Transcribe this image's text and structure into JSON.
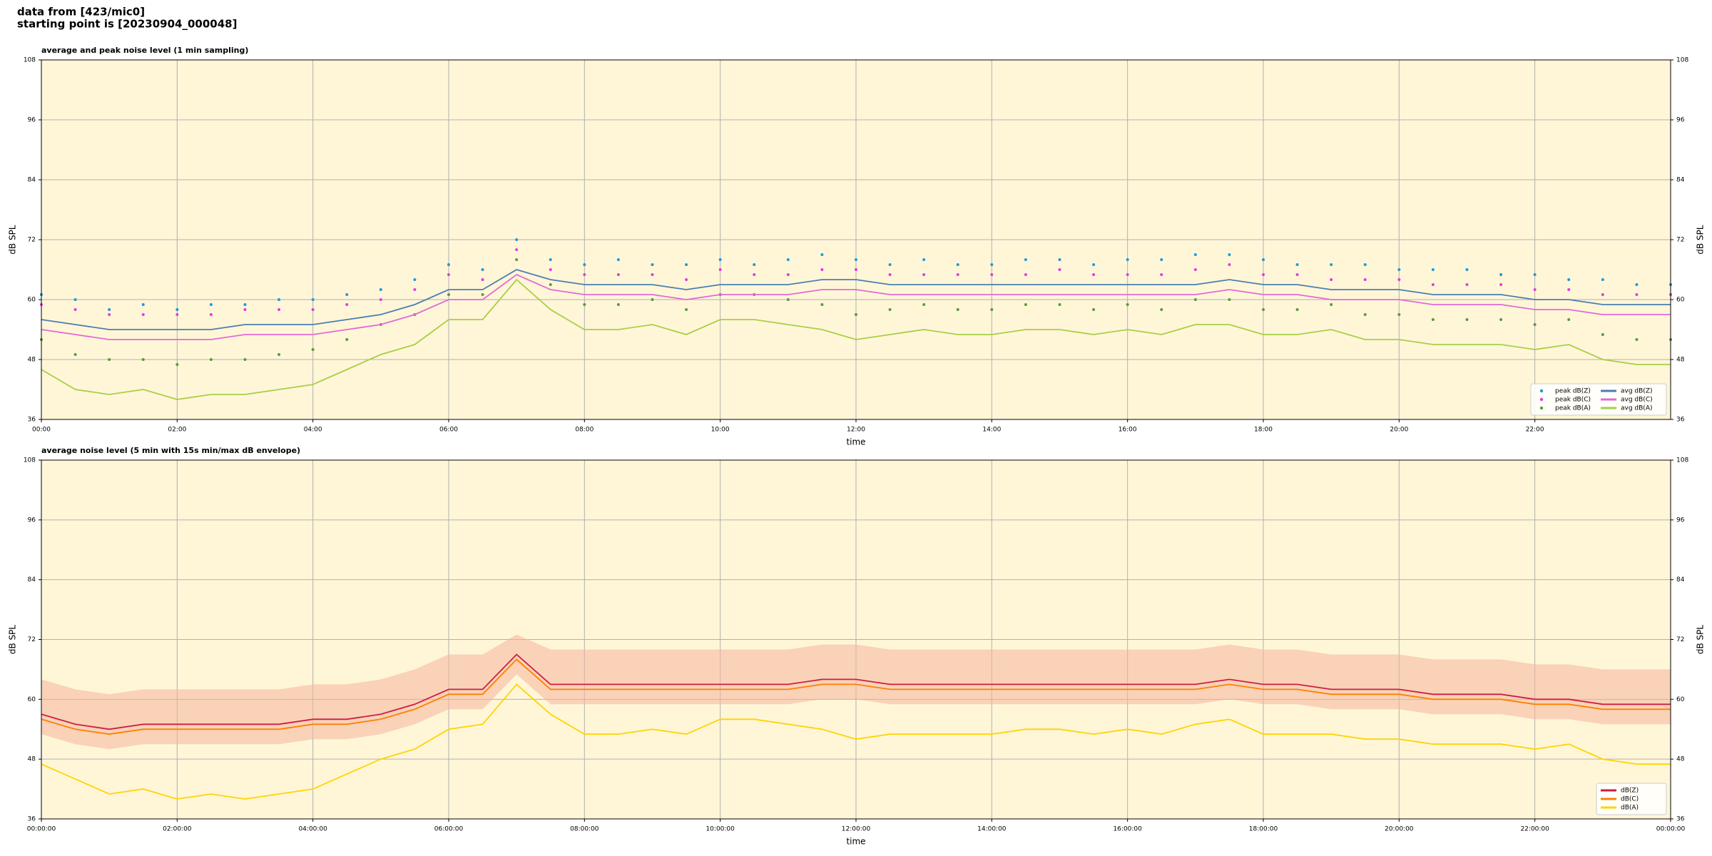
{
  "header": {
    "lines": [
      "data from [423/mic0]",
      "starting point is [20230904_000048]"
    ]
  },
  "chart_data": [
    {
      "type": "line",
      "title": "average and peak noise level (1 min sampling)",
      "xlabel": "time",
      "ylabel": "dB SPL",
      "x": [
        0,
        0.5,
        1,
        1.5,
        2,
        2.5,
        3,
        3.5,
        4,
        4.5,
        5,
        5.5,
        6,
        6.5,
        7,
        7.5,
        8,
        8.5,
        9,
        9.5,
        10,
        10.5,
        11,
        11.5,
        12,
        12.5,
        13,
        13.5,
        14,
        14.5,
        15,
        15.5,
        16,
        16.5,
        17,
        17.5,
        18,
        18.5,
        19,
        19.5,
        20,
        20.5,
        21,
        21.5,
        22,
        22.5,
        23,
        23.5,
        24
      ],
      "xlim": [
        0,
        24
      ],
      "xticks": [
        {
          "value": 0,
          "label": "00:00"
        },
        {
          "value": 2,
          "label": "02:00"
        },
        {
          "value": 4,
          "label": "04:00"
        },
        {
          "value": 6,
          "label": "06:00"
        },
        {
          "value": 8,
          "label": "08:00"
        },
        {
          "value": 10,
          "label": "10:00"
        },
        {
          "value": 12,
          "label": "12:00"
        },
        {
          "value": 14,
          "label": "14:00"
        },
        {
          "value": 16,
          "label": "16:00"
        },
        {
          "value": 18,
          "label": "18:00"
        },
        {
          "value": 20,
          "label": "20:00"
        },
        {
          "value": 22,
          "label": "22:00"
        }
      ],
      "ylim": [
        36,
        108
      ],
      "yticks": [
        36,
        48,
        60,
        72,
        84,
        96,
        108
      ],
      "grid": true,
      "legend": "lower right",
      "legend_columns": 2,
      "series": [
        {
          "name": "peak dB(Z)",
          "kind": "scatter",
          "color": "#1f9bd6",
          "values": [
            61,
            60,
            58,
            59,
            58,
            59,
            59,
            60,
            60,
            61,
            62,
            64,
            67,
            66,
            72,
            68,
            67,
            68,
            67,
            67,
            68,
            67,
            68,
            69,
            68,
            67,
            68,
            67,
            67,
            68,
            68,
            67,
            68,
            68,
            69,
            69,
            68,
            67,
            67,
            67,
            66,
            66,
            66,
            65,
            65,
            64,
            64,
            63,
            63
          ]
        },
        {
          "name": "peak dB(C)",
          "kind": "scatter",
          "color": "#e03fd8",
          "values": [
            59,
            58,
            57,
            57,
            57,
            57,
            58,
            58,
            58,
            59,
            60,
            62,
            65,
            64,
            70,
            66,
            65,
            65,
            65,
            64,
            66,
            65,
            65,
            66,
            66,
            65,
            65,
            65,
            65,
            65,
            66,
            65,
            65,
            65,
            66,
            67,
            65,
            65,
            64,
            64,
            64,
            63,
            63,
            63,
            62,
            62,
            61,
            61,
            61
          ]
        },
        {
          "name": "peak dB(A)",
          "kind": "scatter",
          "color": "#5c9a3c",
          "values": [
            52,
            49,
            48,
            48,
            47,
            48,
            48,
            49,
            50,
            52,
            55,
            57,
            61,
            61,
            68,
            63,
            59,
            59,
            60,
            58,
            61,
            61,
            60,
            59,
            57,
            58,
            59,
            58,
            58,
            59,
            59,
            58,
            59,
            58,
            60,
            60,
            58,
            58,
            59,
            57,
            57,
            56,
            56,
            56,
            55,
            56,
            53,
            52,
            52
          ]
        },
        {
          "name": "avg dB(Z)",
          "kind": "line",
          "color": "#4a7fb0",
          "values": [
            56,
            55,
            54,
            54,
            54,
            54,
            55,
            55,
            55,
            56,
            57,
            59,
            62,
            62,
            66,
            64,
            63,
            63,
            63,
            62,
            63,
            63,
            63,
            64,
            64,
            63,
            63,
            63,
            63,
            63,
            63,
            63,
            63,
            63,
            63,
            64,
            63,
            63,
            62,
            62,
            62,
            61,
            61,
            61,
            60,
            60,
            59,
            59,
            59
          ]
        },
        {
          "name": "avg dB(C)",
          "kind": "line",
          "color": "#e26ad4",
          "values": [
            54,
            53,
            52,
            52,
            52,
            52,
            53,
            53,
            53,
            54,
            55,
            57,
            60,
            60,
            65,
            62,
            61,
            61,
            61,
            60,
            61,
            61,
            61,
            62,
            62,
            61,
            61,
            61,
            61,
            61,
            61,
            61,
            61,
            61,
            61,
            62,
            61,
            61,
            60,
            60,
            60,
            59,
            59,
            59,
            58,
            58,
            57,
            57,
            57
          ]
        },
        {
          "name": "avg dB(A)",
          "kind": "line",
          "color": "#a8cf45",
          "values": [
            46,
            42,
            41,
            42,
            40,
            41,
            41,
            42,
            43,
            46,
            49,
            51,
            56,
            56,
            64,
            58,
            54,
            54,
            55,
            53,
            56,
            56,
            55,
            54,
            52,
            53,
            54,
            53,
            53,
            54,
            54,
            53,
            54,
            53,
            55,
            55,
            53,
            53,
            54,
            52,
            52,
            51,
            51,
            51,
            50,
            51,
            48,
            47,
            47
          ]
        }
      ]
    },
    {
      "type": "line",
      "title": "average noise level (5 min with 15s min/max dB envelope)",
      "xlabel": "time",
      "ylabel": "dB SPL",
      "x": [
        0,
        0.5,
        1,
        1.5,
        2,
        2.5,
        3,
        3.5,
        4,
        4.5,
        5,
        5.5,
        6,
        6.5,
        7,
        7.5,
        8,
        8.5,
        9,
        9.5,
        10,
        10.5,
        11,
        11.5,
        12,
        12.5,
        13,
        13.5,
        14,
        14.5,
        15,
        15.5,
        16,
        16.5,
        17,
        17.5,
        18,
        18.5,
        19,
        19.5,
        20,
        20.5,
        21,
        21.5,
        22,
        22.5,
        23,
        23.5,
        24
      ],
      "xlim": [
        0,
        24
      ],
      "xticks": [
        {
          "value": 0,
          "label": "00:00:00"
        },
        {
          "value": 2,
          "label": "02:00:00"
        },
        {
          "value": 4,
          "label": "04:00:00"
        },
        {
          "value": 6,
          "label": "06:00:00"
        },
        {
          "value": 8,
          "label": "08:00:00"
        },
        {
          "value": 10,
          "label": "10:00:00"
        },
        {
          "value": 12,
          "label": "12:00:00"
        },
        {
          "value": 14,
          "label": "14:00:00"
        },
        {
          "value": 16,
          "label": "16:00:00"
        },
        {
          "value": 18,
          "label": "18:00:00"
        },
        {
          "value": 20,
          "label": "20:00:00"
        },
        {
          "value": 22,
          "label": "22:00:00"
        },
        {
          "value": 24,
          "label": "00:00:00"
        }
      ],
      "ylim": [
        36,
        108
      ],
      "yticks": [
        36,
        48,
        60,
        72,
        84,
        96,
        108
      ],
      "grid": true,
      "legend": "lower right",
      "legend_columns": 1,
      "envelope": {
        "color": "#f4b49c",
        "low": [
          53,
          51,
          50,
          51,
          51,
          51,
          51,
          51,
          52,
          52,
          53,
          55,
          58,
          58,
          65,
          59,
          59,
          59,
          59,
          59,
          59,
          59,
          59,
          60,
          60,
          59,
          59,
          59,
          59,
          59,
          59,
          59,
          59,
          59,
          59,
          60,
          59,
          59,
          58,
          58,
          58,
          57,
          57,
          57,
          56,
          56,
          55,
          55,
          55
        ],
        "high": [
          64,
          62,
          61,
          62,
          62,
          62,
          62,
          62,
          63,
          63,
          64,
          66,
          69,
          69,
          73,
          70,
          70,
          70,
          70,
          70,
          70,
          70,
          70,
          71,
          71,
          70,
          70,
          70,
          70,
          70,
          70,
          70,
          70,
          70,
          70,
          71,
          70,
          70,
          69,
          69,
          69,
          68,
          68,
          68,
          67,
          67,
          66,
          66,
          66
        ]
      },
      "series": [
        {
          "name": "dB(Z)",
          "kind": "line",
          "color": "#cc1f44",
          "values": [
            57,
            55,
            54,
            55,
            55,
            55,
            55,
            55,
            56,
            56,
            57,
            59,
            62,
            62,
            69,
            63,
            63,
            63,
            63,
            63,
            63,
            63,
            63,
            64,
            64,
            63,
            63,
            63,
            63,
            63,
            63,
            63,
            63,
            63,
            63,
            64,
            63,
            63,
            62,
            62,
            62,
            61,
            61,
            61,
            60,
            60,
            59,
            59,
            59
          ]
        },
        {
          "name": "dB(C)",
          "kind": "line",
          "color": "#ff8000",
          "values": [
            56,
            54,
            53,
            54,
            54,
            54,
            54,
            54,
            55,
            55,
            56,
            58,
            61,
            61,
            68,
            62,
            62,
            62,
            62,
            62,
            62,
            62,
            62,
            63,
            63,
            62,
            62,
            62,
            62,
            62,
            62,
            62,
            62,
            62,
            62,
            63,
            62,
            62,
            61,
            61,
            61,
            60,
            60,
            60,
            59,
            59,
            58,
            58,
            58
          ]
        },
        {
          "name": "dB(A)",
          "kind": "line",
          "color": "#ffd400",
          "values": [
            47,
            44,
            41,
            42,
            40,
            41,
            40,
            41,
            42,
            45,
            48,
            50,
            54,
            55,
            63,
            57,
            53,
            53,
            54,
            53,
            56,
            56,
            55,
            54,
            52,
            53,
            53,
            53,
            53,
            54,
            54,
            53,
            54,
            53,
            55,
            56,
            53,
            53,
            53,
            52,
            52,
            51,
            51,
            51,
            50,
            51,
            48,
            47,
            47
          ]
        }
      ]
    }
  ]
}
